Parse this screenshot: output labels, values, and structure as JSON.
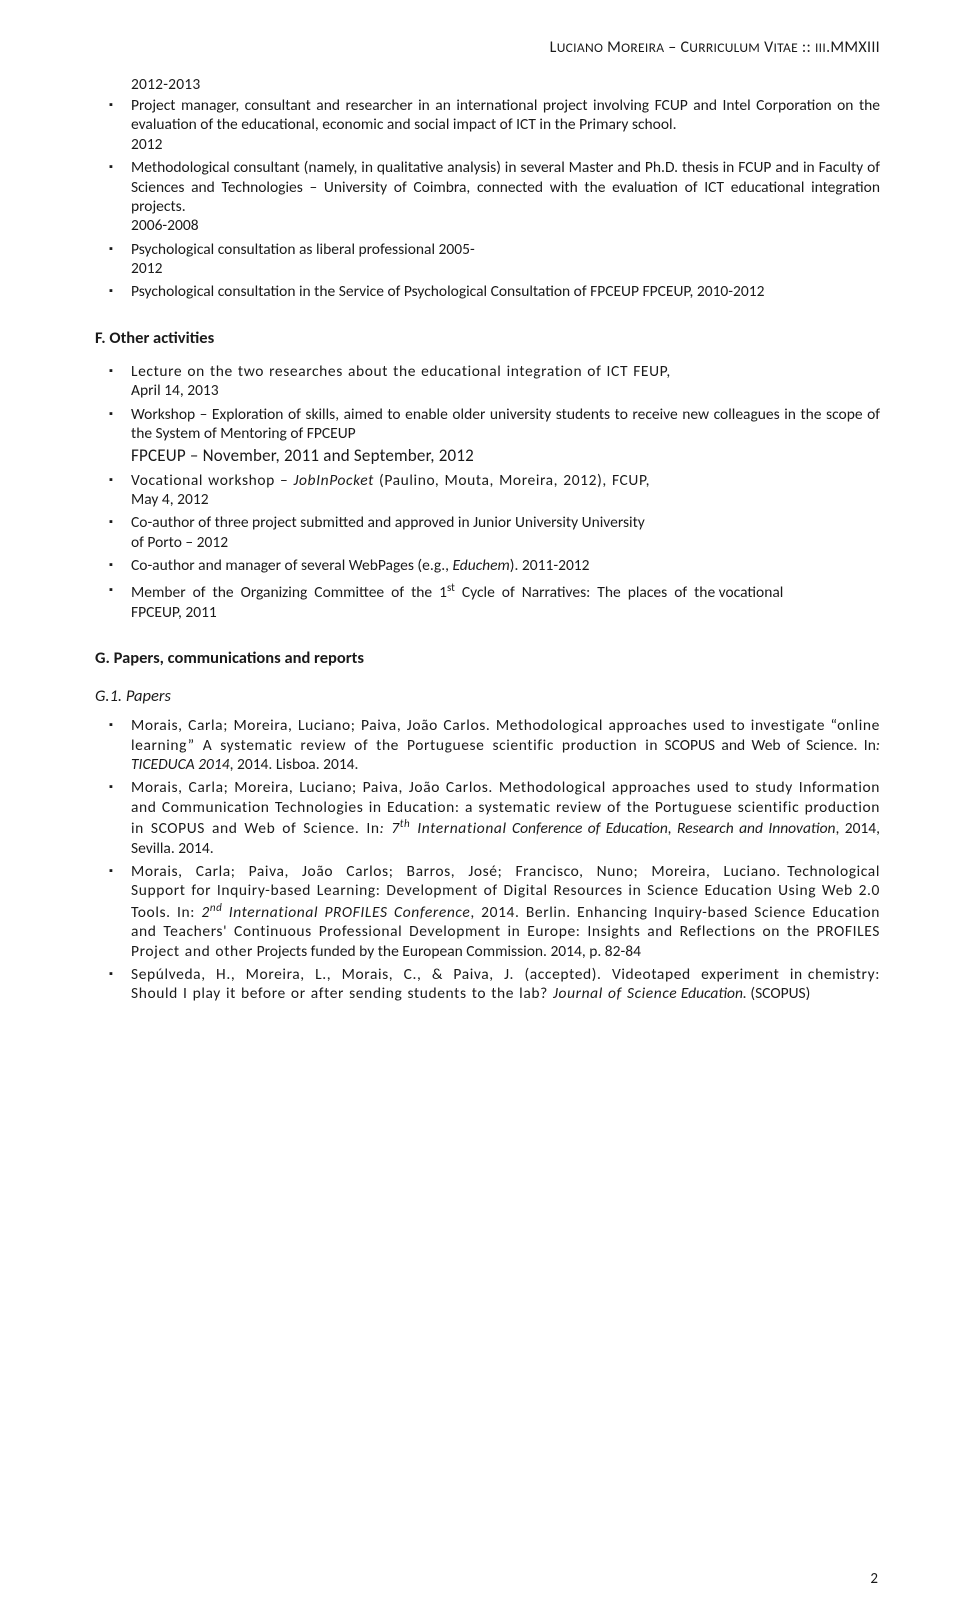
{
  "header": {
    "running_head_html": "L<span style='font-size:13.5px'>UCIANO</span> M<span style='font-size:13.5px'>OREIRA</span> – C<span style='font-size:13.5px'>URRICULUM</span> V<span style='font-size:13.5px'>ITAE</span> :: <span style='font-size:13.5px'>III</span>.MMXIII"
  },
  "top_year": "2012-2013",
  "professional": [
    {
      "html": "Project manager, consultant and researcher in an international project involving FCUP and Intel Corporation on the evaluation of the educational, economic and social impact of ICT in the Primary school.<br>2012"
    },
    {
      "html": "Methodological consultant (namely, in qualitative analysis) in several Master and Ph.D. thesis in FCUP and in Faculty of Sciences and Technologies – University of Coimbra, connected with the evaluation of ICT educational integration projects.<br>2006-2008"
    },
    {
      "html": "Psychological consultation as liberal professional 2005-<br>2012"
    },
    {
      "html": "Psychological consultation in the Service of Psychological Consultation of FPCEUP FPCEUP, 2010-2012"
    }
  ],
  "section_f": "F. Other activities",
  "other_activities": [
    {
      "html": "<span class='spaced'>Lecture on the two researches about the educational integration of ICT FEUP,</span><br>April 14, 2013"
    },
    {
      "html": "Workshop – Exploration of skills, aimed to enable older university students to receive new colleagues in the scope of the System of Mentoring of FPCEUP<div class='fpceup-line'>FPCEUP – November, 2011 and September, 2012</div>"
    },
    {
      "html": "<span class='spaced'>Vocational workshop – <em>JobInPocket</em> (Paulino, Mouta, Moreira, 2012), FCUP,</span><br>May 4, 2012"
    },
    {
      "html": "Co-author of three project submitted and approved in Junior University University<br>of Porto – 2012"
    },
    {
      "html": "Co-author and manager of several WebPages (e.g., <em>Educhem</em>). 2011-2012"
    },
    {
      "html": "<div style='text-align:justify'>Member &nbsp;of &nbsp;the &nbsp;Organizing &nbsp;Committee &nbsp;of &nbsp;the &nbsp;1<span class='sup'>st</span> &nbsp;Cycle &nbsp;of &nbsp;Narratives: &nbsp;The &nbsp;places &nbsp;of &nbsp;the vocational</div>FPCEUP, 2011"
    }
  ],
  "section_g": "G. Papers, communications and reports",
  "sub_g1": "G.1. Papers",
  "papers": [
    {
      "html": "<span class='spaced'>Morais, Carla; Moreira, Luciano; Paiva, João Carlos. Methodological approaches used to investigate “online learning” A systematic review of the Portuguese scientific production in</span> SCOPUS and Web of Science. In<em>: TICEDUCA 2014</em>, 2014. Lisboa. 2014."
    },
    {
      "html": "<span class='spaced'>Morais, Carla; Moreira, Luciano; Paiva, João Carlos. Methodological approaches used to study Information and Communication Technologies in Education: a systematic review of the Portuguese scientific production in SCOPUS and Web of Science. In<em>: 7<span class='sup'>th</span> International</em></span> <em>Conference of Education, Research and Innovation</em>, 2014, Sevilla. 2014."
    },
    {
      "html": "<span class='spaced'>Morais, &nbsp;Carla; &nbsp;Paiva, &nbsp;João &nbsp;Carlos; &nbsp;Barros, &nbsp;José; &nbsp;Francisco, &nbsp;Nuno; &nbsp;Moreira, &nbsp;Luciano. Technological Support for Inquiry-based Learning: Development of Digital Resources in Science Education Using Web 2.0 Tools. In: <em>2<span class='sup'>nd</span> International PROFILES Conference</em>, 2014. Berlin. Enhancing Inquiry-based Science Education and Teachers' Continuous Professional Development in Europe: Insights and Reflections on the PROFILES Project and other</span> Projects funded by the European Commission. 2014, p. 82-84"
    },
    {
      "html": "<span class='spaced'>Sepúlveda, &nbsp;H., &nbsp;Moreira, &nbsp;L., &nbsp;Morais, &nbsp;C., &nbsp;&amp; &nbsp;Paiva, &nbsp;J. &nbsp;(accepted). &nbsp;Videotaped &nbsp;experiment &nbsp;in chemistry: Should I play it before or after sending students to the lab? <em>Journal of Science</em></span> <em>Education.</em> (SCOPUS)"
    }
  ],
  "page_number": "2"
}
